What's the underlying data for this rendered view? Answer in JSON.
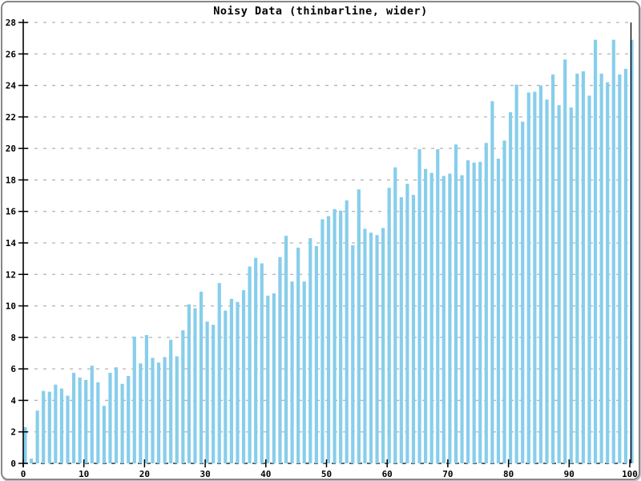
{
  "window": {
    "background_color": "#ffffff",
    "frame_border_color": "#878787",
    "frame_shadow_color": "#b7ccd8"
  },
  "chart_data": {
    "type": "bar",
    "title": "Noisy Data (thinbarline, wider)",
    "xlabel": "",
    "ylabel": "",
    "xlim": [
      0,
      100
    ],
    "ylim": [
      0,
      28
    ],
    "xticks": [
      0,
      10,
      20,
      30,
      40,
      50,
      60,
      70,
      80,
      90,
      100
    ],
    "yticks": [
      0,
      2,
      4,
      6,
      8,
      10,
      12,
      14,
      16,
      18,
      20,
      22,
      24,
      26,
      28
    ],
    "grid": "horizontal-dashed",
    "legend_position": "none",
    "bar_color": "#87CEEB",
    "grid_color": "#b3b3b3",
    "zero_line_color": "#000000",
    "axis_color": "#000000",
    "text_color": "#000000",
    "x": [
      0,
      1,
      2,
      3,
      4,
      5,
      6,
      7,
      8,
      9,
      10,
      11,
      12,
      13,
      14,
      15,
      16,
      17,
      18,
      19,
      20,
      21,
      22,
      23,
      24,
      25,
      26,
      27,
      28,
      29,
      30,
      31,
      32,
      33,
      34,
      35,
      36,
      37,
      38,
      39,
      40,
      41,
      42,
      43,
      44,
      45,
      46,
      47,
      48,
      49,
      50,
      51,
      52,
      53,
      54,
      55,
      56,
      57,
      58,
      59,
      60,
      61,
      62,
      63,
      64,
      65,
      66,
      67,
      68,
      69,
      70,
      71,
      72,
      73,
      74,
      75,
      76,
      77,
      78,
      79,
      80,
      81,
      82,
      83,
      84,
      85,
      86,
      87,
      88,
      89,
      90,
      91,
      92,
      93,
      94,
      95,
      96,
      97,
      98,
      99,
      100
    ],
    "values": [
      2.3,
      0.3,
      3.35,
      4.6,
      4.55,
      5.0,
      4.75,
      4.3,
      5.75,
      5.45,
      5.3,
      6.2,
      5.15,
      3.65,
      5.75,
      6.1,
      5.05,
      5.55,
      8.05,
      6.35,
      8.15,
      6.7,
      6.4,
      6.75,
      7.85,
      6.8,
      8.45,
      10.1,
      9.85,
      10.9,
      9.0,
      8.8,
      11.45,
      9.7,
      10.45,
      10.25,
      11.0,
      12.5,
      13.05,
      12.7,
      10.65,
      10.8,
      13.1,
      14.45,
      11.55,
      13.7,
      11.55,
      14.3,
      13.8,
      15.5,
      15.7,
      16.15,
      16.05,
      16.7,
      13.85,
      17.4,
      14.9,
      14.65,
      14.5,
      14.95,
      17.5,
      18.8,
      16.9,
      17.75,
      17.05,
      19.95,
      18.7,
      18.45,
      19.95,
      18.25,
      18.4,
      20.25,
      18.3,
      19.25,
      19.1,
      19.15,
      20.35,
      23.0,
      19.35,
      20.5,
      22.3,
      24.05,
      21.7,
      23.55,
      23.6,
      24.0,
      23.1,
      24.7,
      22.75,
      25.65,
      22.6,
      24.75,
      24.9,
      23.35,
      26.9,
      24.75,
      24.2,
      26.9,
      24.7,
      25.05,
      26.9
    ]
  }
}
